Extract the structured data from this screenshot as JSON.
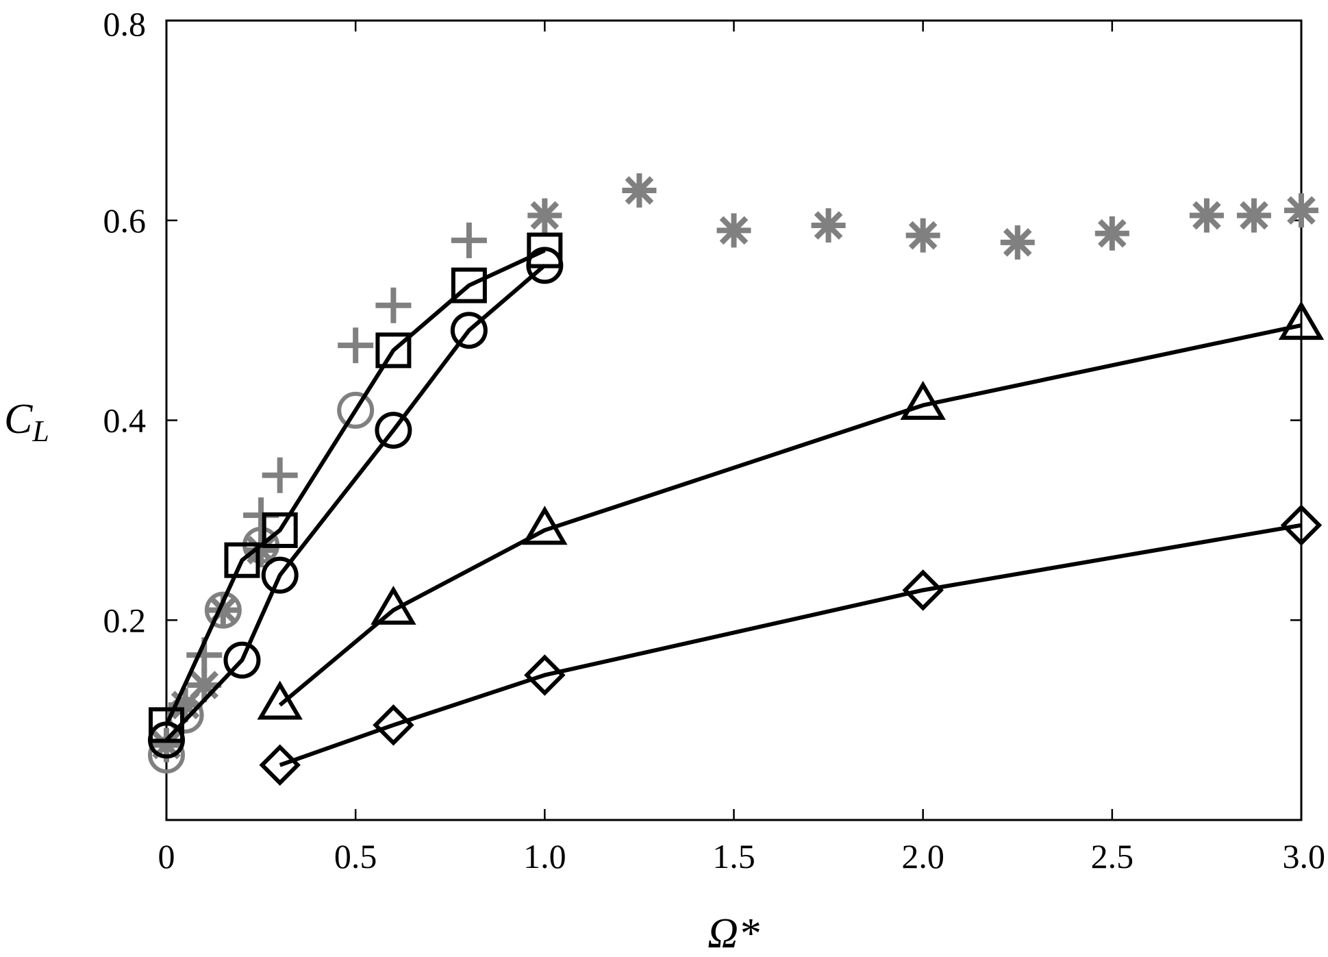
{
  "chart_data": {
    "type": "line",
    "title": "",
    "xlabel": "Ω*",
    "ylabel": "C_L",
    "ylabel_main": "C",
    "ylabel_sub": "L",
    "xlim": [
      0,
      3.0
    ],
    "ylim": [
      0,
      0.8
    ],
    "x_tick_values": [
      0,
      0.5,
      1.0,
      1.5,
      2.0,
      2.5,
      3.0
    ],
    "x_tick_labels": [
      "0",
      "0.5",
      "1.0",
      "1.5",
      "2.0",
      "2.5",
      "3.0"
    ],
    "y_tick_values": [
      0.2,
      0.4,
      0.6,
      0.8
    ],
    "y_tick_labels": [
      "0.2",
      "0.4",
      "0.6",
      "0.8"
    ],
    "grid": false,
    "legend": "none",
    "colors": {
      "line": "#000000",
      "reference": "#808080"
    },
    "series": [
      {
        "marker": "square",
        "line": true,
        "color": "#000000",
        "x": [
          0,
          0.2,
          0.3,
          0.6,
          0.8,
          1.0
        ],
        "y": [
          0.095,
          0.26,
          0.29,
          0.47,
          0.535,
          0.57
        ]
      },
      {
        "marker": "circle",
        "line": true,
        "color": "#000000",
        "x": [
          0,
          0.2,
          0.3,
          0.6,
          0.8,
          1.0
        ],
        "y": [
          0.08,
          0.16,
          0.245,
          0.39,
          0.49,
          0.555
        ]
      },
      {
        "marker": "triangle",
        "line": true,
        "color": "#000000",
        "x": [
          0.3,
          0.6,
          1.0,
          2.0,
          3.0
        ],
        "y": [
          0.115,
          0.21,
          0.29,
          0.415,
          0.495
        ]
      },
      {
        "marker": "diamond",
        "line": true,
        "color": "#000000",
        "x": [
          0.3,
          0.6,
          1.0,
          2.0,
          3.0
        ],
        "y": [
          0.055,
          0.095,
          0.145,
          0.23,
          0.295
        ]
      },
      {
        "marker": "asterisk",
        "line": false,
        "color": "#808080",
        "x": [
          0,
          0.05,
          0.1,
          0.15,
          0.25,
          1.0,
          1.25,
          1.5,
          1.75,
          2.0,
          2.25,
          2.5,
          2.75,
          2.875,
          3.0
        ],
        "y": [
          0.075,
          0.115,
          0.135,
          0.21,
          0.27,
          0.605,
          0.63,
          0.59,
          0.595,
          0.585,
          0.578,
          0.587,
          0.605,
          0.605,
          0.61
        ]
      },
      {
        "marker": "plus",
        "line": false,
        "color": "#808080",
        "x": [
          0.1,
          0.25,
          0.3,
          0.5,
          0.6,
          0.8
        ],
        "y": [
          0.165,
          0.305,
          0.345,
          0.475,
          0.515,
          0.58
        ]
      },
      {
        "marker": "circle-open",
        "line": false,
        "color": "#808080",
        "x": [
          0,
          0.05,
          0.15,
          0.25,
          0.5
        ],
        "y": [
          0.065,
          0.105,
          0.21,
          0.275,
          0.41
        ]
      }
    ]
  }
}
